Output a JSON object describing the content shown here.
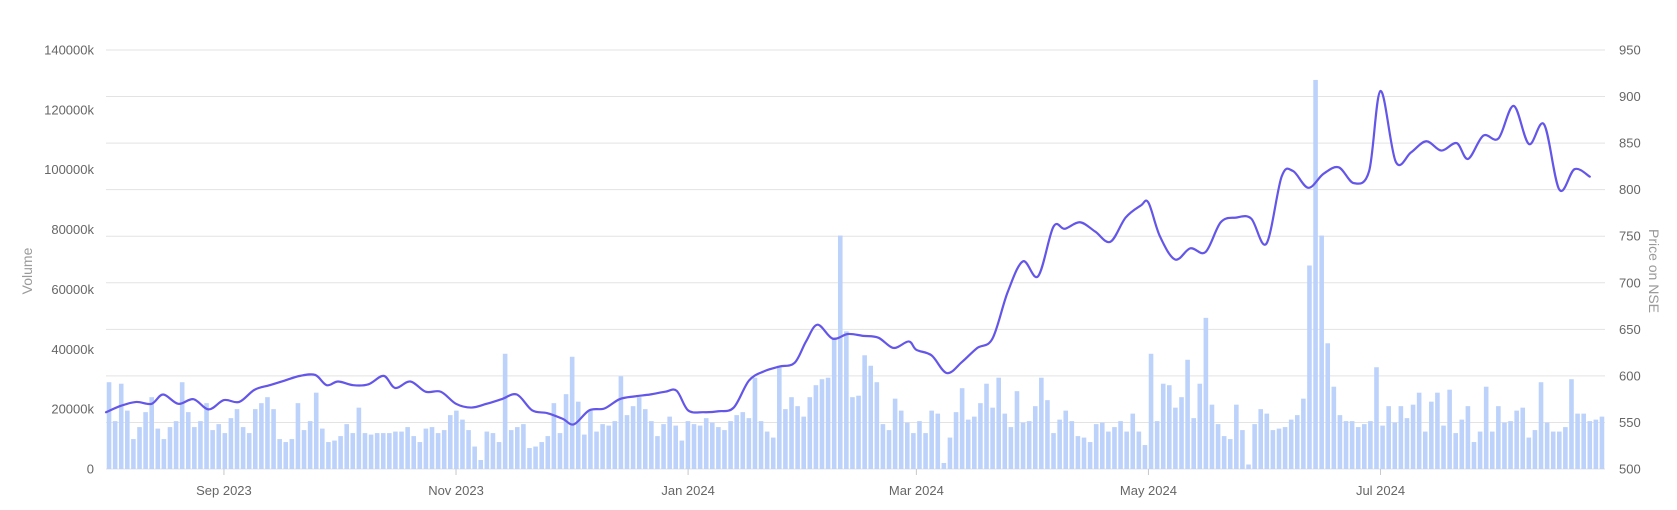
{
  "chart_data": {
    "type": "bar+line",
    "colors": {
      "volume_bar": "#bcd2fb",
      "price_line": "#6356e8",
      "grid": "#e3e3e3"
    },
    "y_left": {
      "label": "Volume",
      "ticks": [
        "0",
        "20000k",
        "40000k",
        "60000k",
        "80000k",
        "100000k",
        "120000k",
        "140000k"
      ],
      "min": 0,
      "max": 140000
    },
    "y_right": {
      "label": "Price on NSE",
      "ticks": [
        "500",
        "550",
        "600",
        "650",
        "700",
        "750",
        "800",
        "850",
        "900",
        "950"
      ],
      "min": 500,
      "max": 950
    },
    "x_axis": {
      "start": "2023-08-01",
      "end": "2024-08-29",
      "ticks": [
        {
          "date": "2023-09-01",
          "label": "Sep 2023"
        },
        {
          "date": "2023-11-01",
          "label": "Nov 2023"
        },
        {
          "date": "2024-01-01",
          "label": "Jan 2024"
        },
        {
          "date": "2024-03-01",
          "label": "Mar 2024"
        },
        {
          "date": "2024-05-01",
          "label": "May 2024"
        },
        {
          "date": "2024-07-01",
          "label": "Jul 2024"
        }
      ]
    },
    "volume_k": [
      29000,
      16000,
      28500,
      19500,
      10000,
      14000,
      19000,
      24000,
      13500,
      10000,
      14000,
      16000,
      29000,
      19000,
      14000,
      16000,
      22000,
      13000,
      15000,
      12000,
      17000,
      20000,
      14000,
      12000,
      20000,
      22000,
      24000,
      20000,
      10000,
      9000,
      10000,
      22000,
      13000,
      16000,
      25500,
      13500,
      9000,
      9500,
      11000,
      15000,
      12000,
      20500,
      12000,
      11500,
      12000,
      12000,
      12000,
      12500,
      12500,
      14000,
      11000,
      9000,
      13500,
      14000,
      12000,
      13000,
      18000,
      19500,
      16500,
      13000,
      7500,
      3000,
      12500,
      12000,
      9000,
      38500,
      13000,
      14000,
      15000,
      7000,
      7500,
      9000,
      11000,
      22000,
      12000,
      25000,
      37500,
      22500,
      11500,
      19500,
      12500,
      15000,
      14500,
      16000,
      31000,
      18000,
      21000,
      24000,
      20000,
      16000,
      11000,
      15000,
      17500,
      14500,
      9500,
      16000,
      15000,
      14500,
      17000,
      15500,
      14000,
      13000,
      16000,
      18000,
      19000,
      17000,
      30500,
      16000,
      12500,
      10500,
      34500,
      20000,
      24000,
      21000,
      17500,
      24000,
      28000,
      30000,
      30500,
      44000,
      78000,
      46000,
      24000,
      24500,
      38000,
      34500,
      29000,
      15000,
      13000,
      23500,
      19500,
      15500,
      12000,
      16000,
      12000,
      19500,
      18500,
      2000,
      10500,
      19000,
      27000,
      16500,
      17500,
      22000,
      28500,
      20500,
      30500,
      18500,
      14000,
      26000,
      15500,
      16000,
      21000,
      30500,
      23000,
      12000,
      16500,
      19500,
      16000,
      11000,
      10500,
      9000,
      15000,
      15500,
      12500,
      14000,
      16000,
      12500,
      18500,
      12500,
      8000,
      38500,
      16000,
      28500,
      28000,
      20500,
      24000,
      36500,
      17000,
      28500,
      50500,
      21500,
      15000,
      11000,
      10000,
      21500,
      13000,
      1500,
      15000,
      20000,
      18500,
      13000,
      13500,
      14000,
      16500,
      18000,
      23500,
      68000,
      130000,
      78000,
      42000,
      27500,
      18000,
      16000,
      16000,
      14000,
      15000,
      16000,
      34000,
      14500,
      21000,
      15500,
      21000,
      17000,
      21500,
      25500,
      12500,
      22500,
      25500,
      14500,
      26500,
      12000,
      16500,
      21000,
      9000,
      12500,
      27500,
      12500,
      21000,
      15500,
      16000,
      19500,
      20500,
      10500,
      13000,
      29000,
      15500,
      12500,
      12500,
      14000,
      30000,
      18500,
      18500,
      16000,
      16500,
      17500
    ],
    "price": [
      {
        "date": "2023-08-01",
        "v": 561
      },
      {
        "date": "2023-08-05",
        "v": 568
      },
      {
        "date": "2023-08-09",
        "v": 572
      },
      {
        "date": "2023-08-13",
        "v": 570
      },
      {
        "date": "2023-08-16",
        "v": 580
      },
      {
        "date": "2023-08-20",
        "v": 570
      },
      {
        "date": "2023-08-24",
        "v": 575
      },
      {
        "date": "2023-08-28",
        "v": 564
      },
      {
        "date": "2023-09-01",
        "v": 574
      },
      {
        "date": "2023-09-05",
        "v": 572
      },
      {
        "date": "2023-09-09",
        "v": 585
      },
      {
        "date": "2023-09-13",
        "v": 590
      },
      {
        "date": "2023-09-17",
        "v": 595
      },
      {
        "date": "2023-09-21",
        "v": 600
      },
      {
        "date": "2023-09-25",
        "v": 601
      },
      {
        "date": "2023-09-28",
        "v": 590
      },
      {
        "date": "2023-10-01",
        "v": 594
      },
      {
        "date": "2023-10-05",
        "v": 590
      },
      {
        "date": "2023-10-09",
        "v": 591
      },
      {
        "date": "2023-10-13",
        "v": 600
      },
      {
        "date": "2023-10-16",
        "v": 587
      },
      {
        "date": "2023-10-20",
        "v": 594
      },
      {
        "date": "2023-10-24",
        "v": 583
      },
      {
        "date": "2023-10-28",
        "v": 583
      },
      {
        "date": "2023-11-01",
        "v": 570
      },
      {
        "date": "2023-11-05",
        "v": 566
      },
      {
        "date": "2023-11-09",
        "v": 570
      },
      {
        "date": "2023-11-13",
        "v": 575
      },
      {
        "date": "2023-11-17",
        "v": 580
      },
      {
        "date": "2023-11-21",
        "v": 563
      },
      {
        "date": "2023-11-25",
        "v": 560
      },
      {
        "date": "2023-11-29",
        "v": 554
      },
      {
        "date": "2023-12-02",
        "v": 548
      },
      {
        "date": "2023-12-06",
        "v": 563
      },
      {
        "date": "2023-12-10",
        "v": 565
      },
      {
        "date": "2023-12-14",
        "v": 575
      },
      {
        "date": "2023-12-18",
        "v": 578
      },
      {
        "date": "2023-12-22",
        "v": 580
      },
      {
        "date": "2023-12-26",
        "v": 583
      },
      {
        "date": "2023-12-29",
        "v": 584
      },
      {
        "date": "2024-01-01",
        "v": 563
      },
      {
        "date": "2024-01-05",
        "v": 561
      },
      {
        "date": "2024-01-09",
        "v": 562
      },
      {
        "date": "2024-01-13",
        "v": 566
      },
      {
        "date": "2024-01-17",
        "v": 595
      },
      {
        "date": "2024-01-21",
        "v": 605
      },
      {
        "date": "2024-01-25",
        "v": 610
      },
      {
        "date": "2024-01-29",
        "v": 614
      },
      {
        "date": "2024-02-01",
        "v": 637
      },
      {
        "date": "2024-02-04",
        "v": 655
      },
      {
        "date": "2024-02-08",
        "v": 640
      },
      {
        "date": "2024-02-12",
        "v": 645
      },
      {
        "date": "2024-02-16",
        "v": 643
      },
      {
        "date": "2024-02-20",
        "v": 641
      },
      {
        "date": "2024-02-24",
        "v": 630
      },
      {
        "date": "2024-02-28",
        "v": 637
      },
      {
        "date": "2024-03-01",
        "v": 628
      },
      {
        "date": "2024-03-05",
        "v": 622
      },
      {
        "date": "2024-03-09",
        "v": 603
      },
      {
        "date": "2024-03-13",
        "v": 615
      },
      {
        "date": "2024-03-17",
        "v": 630
      },
      {
        "date": "2024-03-21",
        "v": 640
      },
      {
        "date": "2024-03-25",
        "v": 690
      },
      {
        "date": "2024-03-29",
        "v": 723
      },
      {
        "date": "2024-04-02",
        "v": 707
      },
      {
        "date": "2024-04-06",
        "v": 760
      },
      {
        "date": "2024-04-09",
        "v": 758
      },
      {
        "date": "2024-04-13",
        "v": 765
      },
      {
        "date": "2024-04-17",
        "v": 755
      },
      {
        "date": "2024-04-21",
        "v": 744
      },
      {
        "date": "2024-04-25",
        "v": 770
      },
      {
        "date": "2024-04-29",
        "v": 783
      },
      {
        "date": "2024-05-01",
        "v": 786
      },
      {
        "date": "2024-05-04",
        "v": 750
      },
      {
        "date": "2024-05-08",
        "v": 725
      },
      {
        "date": "2024-05-12",
        "v": 737
      },
      {
        "date": "2024-05-16",
        "v": 733
      },
      {
        "date": "2024-05-20",
        "v": 765
      },
      {
        "date": "2024-05-24",
        "v": 770
      },
      {
        "date": "2024-05-28",
        "v": 769
      },
      {
        "date": "2024-06-01",
        "v": 742
      },
      {
        "date": "2024-06-05",
        "v": 814
      },
      {
        "date": "2024-06-08",
        "v": 820
      },
      {
        "date": "2024-06-12",
        "v": 802
      },
      {
        "date": "2024-06-16",
        "v": 817
      },
      {
        "date": "2024-06-20",
        "v": 824
      },
      {
        "date": "2024-06-24",
        "v": 807
      },
      {
        "date": "2024-06-28",
        "v": 820
      },
      {
        "date": "2024-07-01",
        "v": 906
      },
      {
        "date": "2024-07-05",
        "v": 830
      },
      {
        "date": "2024-07-09",
        "v": 840
      },
      {
        "date": "2024-07-13",
        "v": 852
      },
      {
        "date": "2024-07-17",
        "v": 842
      },
      {
        "date": "2024-07-21",
        "v": 850
      },
      {
        "date": "2024-07-24",
        "v": 833
      },
      {
        "date": "2024-07-28",
        "v": 858
      },
      {
        "date": "2024-08-01",
        "v": 855
      },
      {
        "date": "2024-08-05",
        "v": 890
      },
      {
        "date": "2024-08-09",
        "v": 849
      },
      {
        "date": "2024-08-13",
        "v": 870
      },
      {
        "date": "2024-08-17",
        "v": 800
      },
      {
        "date": "2024-08-21",
        "v": 822
      },
      {
        "date": "2024-08-25",
        "v": 814
      }
    ]
  }
}
